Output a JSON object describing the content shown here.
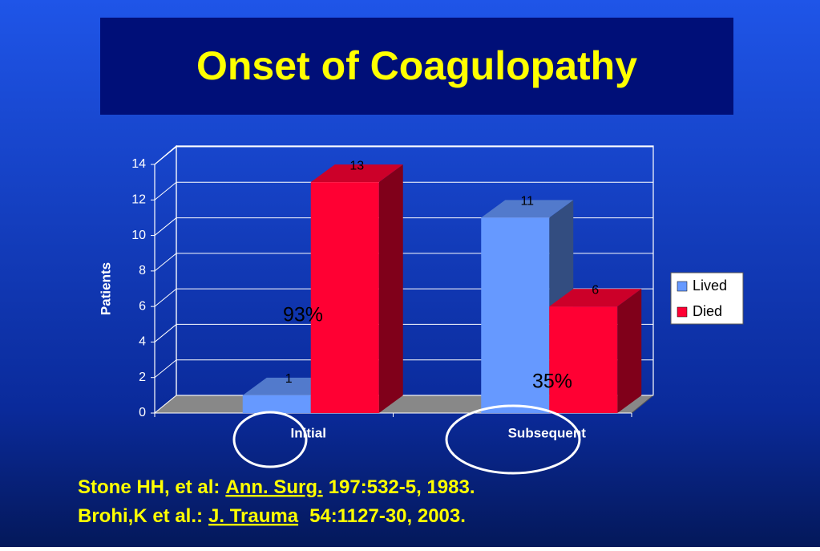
{
  "chart_data": {
    "type": "bar3d",
    "title": "Onset of Coagulopathy",
    "y_label": "Patients",
    "categories": [
      "Initial",
      "Subsequent"
    ],
    "series": [
      {
        "name": "Lived",
        "color": "#6699ff",
        "values": [
          1,
          11
        ]
      },
      {
        "name": "Died",
        "color": "#ff0033",
        "values": [
          13,
          6
        ]
      }
    ],
    "ylim": [
      0,
      14
    ],
    "yticks": [
      0,
      2,
      4,
      6,
      8,
      10,
      12,
      14
    ],
    "grid": true,
    "legend": "right",
    "annotations": [
      "93%",
      "35%"
    ]
  },
  "references": [
    {
      "author": "Stone HH, et al:",
      "journal": "Ann. Surg.",
      "citation": "197:532-5, 1983."
    },
    {
      "author": "Brohi,K et al.:",
      "journal": "J. Trauma",
      "citation": "54:1127-30, 2003."
    }
  ]
}
